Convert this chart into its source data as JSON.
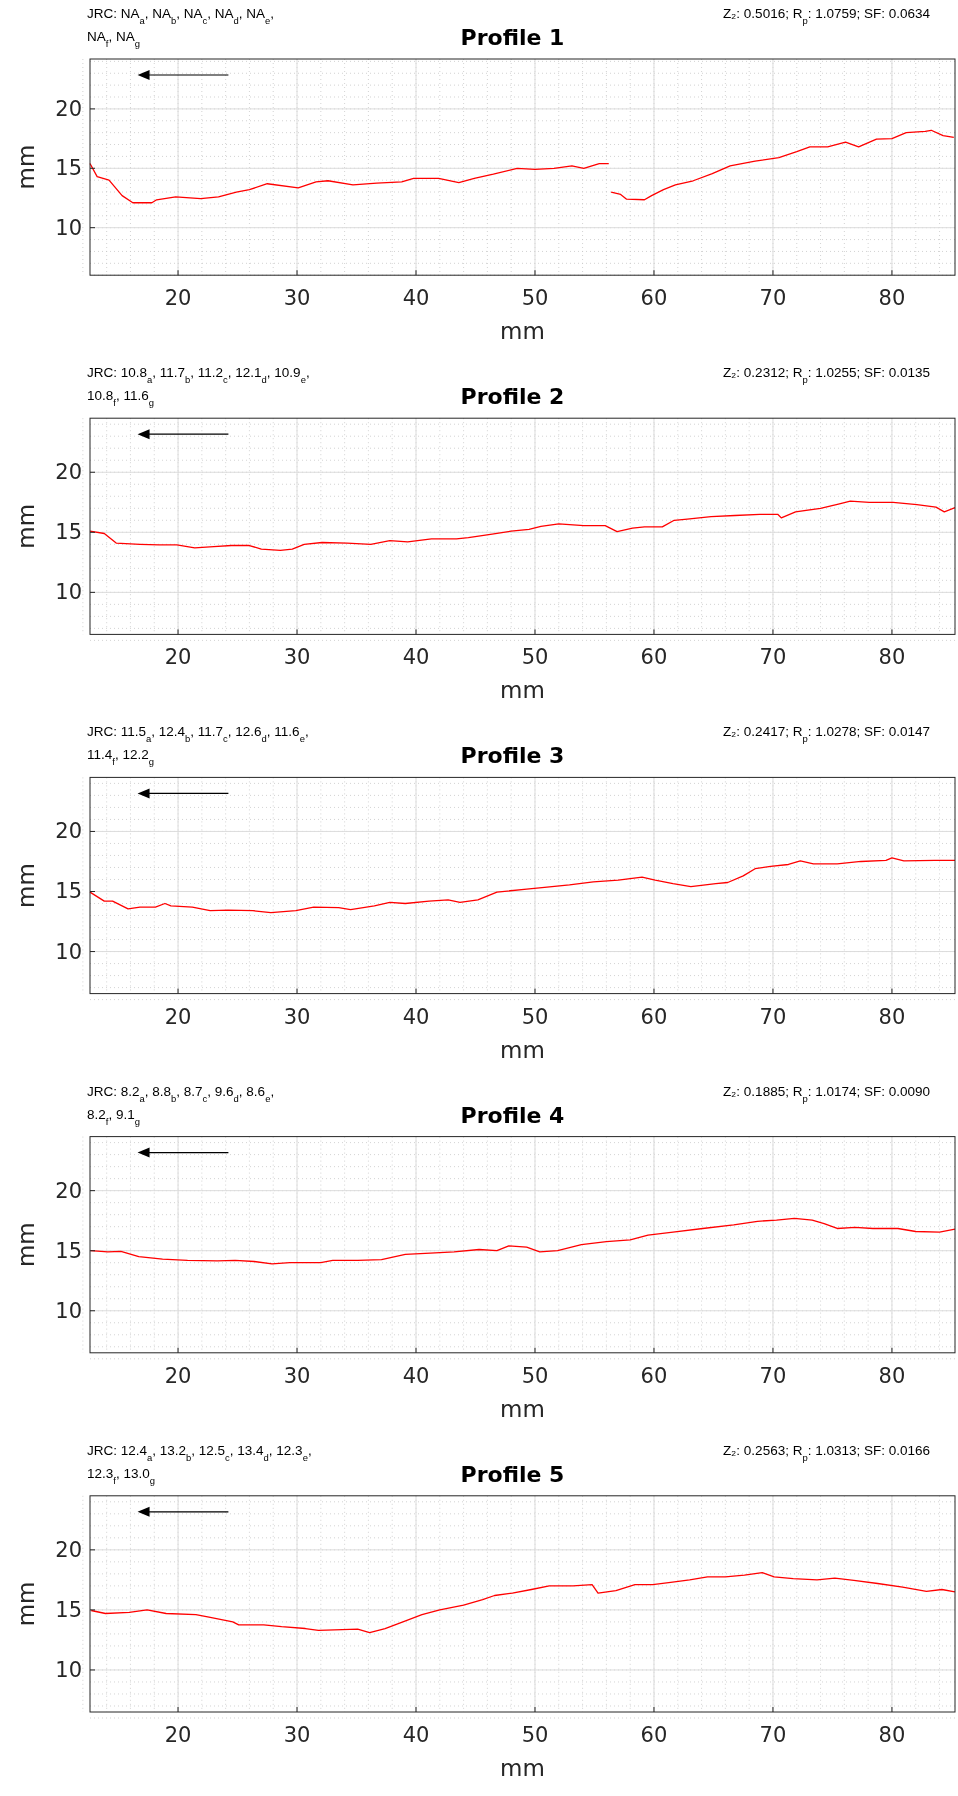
{
  "chart_data": [
    {
      "type": "line",
      "title": "Profile 1",
      "xlabel": "mm",
      "ylabel": "mm",
      "annotations": [
        "JRC: NA$_{a}$, NA$_{b}$, NA$_{c}$, NA$_{d}$, NA$_{e}$, NA$_{f}$, NA$_{g}$",
        "Z₂: 0.5016; R$_{p}$: 1.0759; SF: 0.0634"
      ],
      "xlim": [
        12.6,
        85.3
      ],
      "ylim": [
        6,
        24.2
      ],
      "xticks": [
        20,
        30,
        40,
        50,
        60,
        70,
        80
      ],
      "yticks": [
        10,
        15,
        20
      ],
      "grid": true,
      "series": [
        {
          "color": "#ff0000",
          "x": [
            12.6,
            13.2,
            14.2,
            15.3,
            16.2,
            17.8,
            18.2,
            19.8,
            21.9,
            23.4,
            24.9,
            26.0,
            27.5,
            30.1,
            31.6,
            32.6,
            34.7,
            36.7,
            38.8,
            39.8,
            41.9,
            43.1,
            43.6,
            44.9,
            46.5,
            48.5,
            50.0,
            51.6,
            53.1,
            54.1,
            55.4,
            56.2,
            56.3,
            56.4,
            57.2,
            57.7,
            59.2,
            59.8,
            60.8,
            61.8,
            63.3,
            64.9,
            66.4,
            68.5,
            70.5,
            72.0,
            73.1,
            74.6,
            76.1,
            77.2,
            78.7,
            80.0,
            81.2,
            82.8,
            83.3,
            84.3,
            85.2
          ],
          "values": [
            15.4,
            14.3,
            14.0,
            12.7,
            12.1,
            12.1,
            12.35,
            12.6,
            12.45,
            12.6,
            13.0,
            13.2,
            13.7,
            13.35,
            13.85,
            13.95,
            13.6,
            13.75,
            13.85,
            14.15,
            14.15,
            13.9,
            13.8,
            14.15,
            14.5,
            15.0,
            14.9,
            15.0,
            15.2,
            15.0,
            15.4,
            15.4,
            null,
            13.0,
            12.8,
            12.4,
            12.35,
            12.7,
            13.2,
            13.6,
            13.95,
            14.55,
            15.2,
            15.6,
            15.9,
            16.4,
            16.8,
            16.8,
            17.2,
            16.8,
            17.45,
            17.5,
            18.0,
            18.1,
            18.2,
            17.75,
            17.6
          ]
        }
      ]
    },
    {
      "type": "line",
      "title": "Profile 2",
      "xlabel": "mm",
      "ylabel": "mm",
      "annotations": [
        "JRC: 10.8$_{a}$, 11.7$_{b}$, 11.2$_{c}$, 12.1$_{d}$, 10.9$_{e}$, 10.8$_{f}$, 11.6$_{g}$",
        "Z₂: 0.2312; R$_{p}$: 1.0255; SF: 0.0135"
      ],
      "xlim": [
        12.6,
        85.3
      ],
      "ylim": [
        6.5,
        24.5
      ],
      "xticks": [
        20,
        30,
        40,
        50,
        60,
        70,
        80
      ],
      "yticks": [
        10,
        15,
        20
      ],
      "grid": true,
      "series": [
        {
          "color": "#ff0000",
          "x": [
            12.6,
            13.8,
            14.8,
            16.8,
            18.4,
            19.9,
            21.4,
            23.0,
            24.5,
            26.0,
            27.0,
            28.6,
            29.6,
            30.6,
            32.1,
            34.2,
            36.2,
            37.8,
            39.3,
            41.3,
            43.4,
            44.4,
            46.4,
            48.0,
            49.5,
            50.5,
            52.0,
            54.1,
            55.9,
            56.9,
            58.2,
            59.2,
            60.7,
            61.7,
            62.8,
            64.8,
            66.8,
            68.9,
            70.4,
            70.7,
            71.9,
            74.0,
            75.5,
            76.5,
            78.1,
            80.1,
            82.1,
            83.7,
            84.4,
            85.3
          ],
          "values": [
            15.1,
            14.9,
            14.1,
            14.0,
            13.95,
            13.95,
            13.7,
            13.8,
            13.9,
            13.9,
            13.6,
            13.5,
            13.6,
            14.0,
            14.15,
            14.1,
            14.0,
            14.3,
            14.2,
            14.45,
            14.45,
            14.55,
            14.85,
            15.1,
            15.25,
            15.5,
            15.7,
            15.55,
            15.55,
            15.05,
            15.35,
            15.45,
            15.45,
            16.0,
            16.1,
            16.3,
            16.4,
            16.5,
            16.5,
            16.2,
            16.7,
            17.0,
            17.35,
            17.6,
            17.5,
            17.5,
            17.3,
            17.1,
            16.7,
            17.05
          ]
        }
      ]
    },
    {
      "type": "line",
      "title": "Profile 3",
      "xlabel": "mm",
      "ylabel": "mm",
      "annotations": [
        "JRC: 11.5$_{a}$, 12.4$_{b}$, 11.7$_{c}$, 12.6$_{d}$, 11.6$_{e}$, 11.4$_{f}$, 12.2$_{g}$",
        "Z₂: 0.2417; R$_{p}$: 1.0278; SF: 0.0147"
      ],
      "xlim": [
        12.6,
        85.3
      ],
      "ylim": [
        6.5,
        24.5
      ],
      "xticks": [
        20,
        30,
        40,
        50,
        60,
        70,
        80
      ],
      "yticks": [
        10,
        15,
        20
      ],
      "grid": true,
      "series": [
        {
          "color": "#ff0000",
          "x": [
            12.6,
            13.8,
            14.5,
            15.8,
            16.8,
            18.1,
            18.9,
            19.4,
            21.2,
            22.7,
            24.2,
            26.3,
            27.8,
            29.9,
            31.4,
            33.5,
            34.5,
            36.5,
            37.8,
            39.1,
            41.1,
            42.7,
            43.7,
            45.2,
            46.8,
            49.3,
            50.8,
            52.9,
            54.9,
            57.0,
            59.0,
            60.1,
            61.6,
            63.1,
            65.2,
            66.2,
            67.5,
            68.5,
            69.8,
            71.3,
            72.3,
            73.4,
            75.4,
            77.4,
            79.5,
            80.0,
            81.0,
            83.6,
            85.3
          ],
          "values": [
            14.95,
            14.2,
            14.2,
            13.55,
            13.7,
            13.7,
            14.0,
            13.8,
            13.7,
            13.4,
            13.45,
            13.4,
            13.25,
            13.4,
            13.7,
            13.65,
            13.5,
            13.8,
            14.1,
            14.0,
            14.2,
            14.3,
            14.1,
            14.3,
            14.95,
            15.2,
            15.35,
            15.55,
            15.8,
            15.95,
            16.2,
            15.95,
            15.65,
            15.4,
            15.65,
            15.75,
            16.3,
            16.9,
            17.1,
            17.25,
            17.55,
            17.3,
            17.3,
            17.5,
            17.6,
            17.8,
            17.55,
            17.6,
            17.6
          ]
        }
      ]
    },
    {
      "type": "line",
      "title": "Profile 4",
      "xlabel": "mm",
      "ylabel": "mm",
      "annotations": [
        "JRC: 8.2$_{a}$, 8.8$_{b}$, 8.7$_{c}$, 9.6$_{d}$, 8.6$_{e}$, 8.2$_{f}$, 9.1$_{g}$",
        "Z₂: 0.1885; R$_{p}$: 1.0174; SF: 0.0090"
      ],
      "xlim": [
        12.6,
        85.3
      ],
      "ylim": [
        6.5,
        24.5
      ],
      "xticks": [
        20,
        30,
        40,
        50,
        60,
        70,
        80
      ],
      "yticks": [
        10,
        15,
        20
      ],
      "grid": true,
      "series": [
        {
          "color": "#ff0000",
          "x": [
            12.65,
            14.1,
            15.2,
            16.7,
            18.7,
            20.8,
            23.3,
            24.8,
            26.4,
            27.9,
            29.4,
            32.0,
            33.0,
            35.1,
            37.1,
            39.1,
            41.2,
            43.2,
            45.3,
            46.8,
            47.8,
            49.3,
            50.4,
            51.9,
            53.9,
            56.0,
            58.0,
            59.5,
            61.6,
            64.1,
            66.7,
            68.7,
            70.3,
            71.8,
            73.3,
            74.3,
            75.4,
            76.9,
            78.4,
            80.5,
            82.0,
            84.0,
            85.3
          ],
          "values": [
            15.0,
            14.9,
            14.95,
            14.5,
            14.3,
            14.2,
            14.15,
            14.2,
            14.1,
            13.9,
            14.0,
            14.0,
            14.2,
            14.2,
            14.25,
            14.7,
            14.8,
            14.9,
            15.1,
            15.0,
            15.4,
            15.3,
            14.9,
            15.0,
            15.5,
            15.75,
            15.9,
            16.3,
            16.55,
            16.85,
            17.15,
            17.45,
            17.55,
            17.7,
            17.55,
            17.25,
            16.85,
            16.95,
            16.85,
            16.85,
            16.6,
            16.55,
            16.8
          ]
        }
      ]
    },
    {
      "type": "line",
      "title": "Profile 5",
      "xlabel": "mm",
      "ylabel": "mm",
      "annotations": [
        "JRC: 12.4$_{a}$, 13.2$_{b}$, 12.5$_{c}$, 13.4$_{d}$, 12.3$_{e}$, 12.3$_{f}$, 13.0$_{g}$",
        "Z₂: 0.2563; R$_{p}$: 1.0313; SF: 0.0166"
      ],
      "xlim": [
        12.6,
        85.3
      ],
      "ylim": [
        6.5,
        24.5
      ],
      "xticks": [
        20,
        30,
        40,
        50,
        60,
        70,
        80
      ],
      "yticks": [
        10,
        15,
        20
      ],
      "grid": true,
      "series": [
        {
          "color": "#ff0000",
          "x": [
            12.7,
            13.9,
            15.9,
            17.4,
            19.0,
            21.5,
            22.6,
            24.6,
            25.1,
            27.2,
            28.7,
            30.7,
            31.8,
            33.8,
            35.1,
            36.1,
            37.4,
            38.9,
            40.5,
            42.0,
            44.0,
            45.6,
            46.6,
            48.1,
            49.7,
            51.2,
            53.2,
            54.8,
            55.3,
            56.8,
            58.4,
            59.9,
            61.4,
            63.0,
            64.5,
            66.0,
            67.6,
            69.1,
            70.1,
            71.7,
            73.7,
            75.2,
            76.8,
            78.8,
            80.9,
            82.9,
            84.2,
            85.3
          ],
          "values": [
            14.95,
            14.7,
            14.8,
            15.0,
            14.7,
            14.6,
            14.4,
            14.0,
            13.75,
            13.75,
            13.6,
            13.45,
            13.3,
            13.35,
            13.4,
            13.1,
            13.45,
            14.0,
            14.6,
            15.0,
            15.4,
            15.85,
            16.2,
            16.4,
            16.7,
            17.0,
            17.0,
            17.1,
            16.4,
            16.6,
            17.1,
            17.1,
            17.3,
            17.5,
            17.75,
            17.75,
            17.9,
            18.1,
            17.75,
            17.6,
            17.5,
            17.65,
            17.45,
            17.2,
            16.9,
            16.55,
            16.7,
            16.5
          ]
        }
      ]
    }
  ]
}
